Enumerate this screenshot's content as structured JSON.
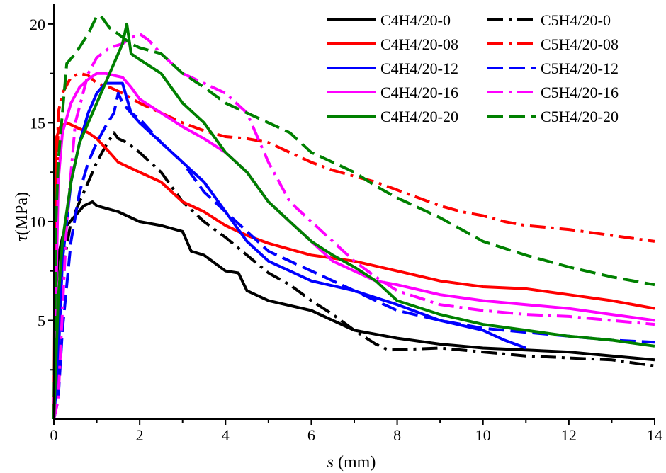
{
  "chart_data": {
    "type": "line",
    "xlabel": {
      "symbol": "s",
      "unit": " (mm)"
    },
    "ylabel": {
      "symbol": "τ",
      "unit": "(MPa)"
    },
    "xlim": [
      0,
      14
    ],
    "ylim": [
      0,
      21
    ],
    "xticks": [
      0,
      2,
      4,
      6,
      8,
      10,
      12,
      14
    ],
    "yticks": [
      5,
      10,
      15,
      20
    ],
    "grid": false,
    "legend_position": "top-right",
    "series": [
      {
        "name": "C4H4/20-0",
        "color": "#000000",
        "dash": "solid",
        "x": [
          0,
          0.05,
          0.1,
          0.2,
          0.3,
          0.5,
          0.7,
          0.9,
          1.0,
          1.5,
          2.0,
          2.5,
          3.0,
          3.2,
          3.5,
          4.0,
          4.3,
          4.5,
          5.0,
          6.0,
          6.5,
          7.0,
          8.0,
          9.0,
          10.0,
          11.0,
          12.0,
          13.0,
          14.0
        ],
        "y": [
          0,
          6.5,
          8.2,
          9.2,
          9.8,
          10.3,
          10.8,
          11.0,
          10.8,
          10.5,
          10.0,
          9.8,
          9.5,
          8.5,
          8.3,
          7.5,
          7.4,
          6.5,
          6.0,
          5.5,
          5.0,
          4.5,
          4.1,
          3.8,
          3.6,
          3.5,
          3.4,
          3.2,
          3.0
        ]
      },
      {
        "name": "C5H4/20-0",
        "color": "#000000",
        "dash": "dashdot",
        "x": [
          0,
          0.1,
          0.2,
          0.4,
          0.6,
          0.8,
          1.0,
          1.2,
          1.4,
          1.5,
          1.7,
          2.0,
          2.5,
          3.0,
          3.5,
          4.0,
          4.5,
          5.0,
          5.5,
          6.0,
          6.5,
          7.0,
          7.5,
          7.8,
          9.0,
          10.0,
          11.0,
          12.0,
          13.0,
          14.0
        ],
        "y": [
          0,
          5.0,
          7.5,
          10.0,
          11.0,
          12.0,
          13.0,
          13.8,
          14.5,
          14.2,
          14.0,
          13.5,
          12.5,
          11.0,
          10.0,
          9.2,
          8.3,
          7.4,
          6.8,
          6.0,
          5.3,
          4.5,
          3.8,
          3.5,
          3.6,
          3.4,
          3.2,
          3.1,
          3.0,
          2.7
        ]
      },
      {
        "name": "C4H4/20-08",
        "color": "#ff0000",
        "dash": "solid",
        "x": [
          0,
          0.05,
          0.15,
          0.3,
          0.5,
          0.8,
          1.0,
          1.3,
          1.5,
          2.0,
          2.5,
          3.0,
          3.5,
          4.0,
          4.5,
          5.0,
          6.0,
          7.0,
          8.0,
          9.0,
          10.0,
          11.0,
          12.0,
          13.0,
          14.0
        ],
        "y": [
          0,
          14.2,
          14.8,
          15.0,
          14.8,
          14.5,
          14.2,
          13.5,
          13.0,
          12.5,
          12.0,
          11.0,
          10.5,
          9.8,
          9.3,
          8.9,
          8.3,
          8.0,
          7.5,
          7.0,
          6.7,
          6.6,
          6.3,
          6.0,
          5.6
        ]
      },
      {
        "name": "C5H4/20-08",
        "color": "#ff0000",
        "dash": "dashdot",
        "x": [
          0,
          0.1,
          0.2,
          0.4,
          0.6,
          0.8,
          1.0,
          1.3,
          1.6,
          2.0,
          2.5,
          3.0,
          3.5,
          4.0,
          4.5,
          5.0,
          5.5,
          6.0,
          6.5,
          7.0,
          7.5,
          8.0,
          8.5,
          9.0,
          9.5,
          10.0,
          10.5,
          11.0,
          12.0,
          13.0,
          14.0
        ],
        "y": [
          0,
          15.5,
          16.5,
          17.3,
          17.5,
          17.4,
          17.0,
          16.8,
          16.5,
          16.0,
          15.5,
          15.0,
          14.6,
          14.3,
          14.2,
          14.0,
          13.5,
          13.0,
          12.6,
          12.3,
          12.0,
          11.6,
          11.2,
          10.8,
          10.5,
          10.3,
          10.0,
          9.8,
          9.6,
          9.3,
          9.0
        ]
      },
      {
        "name": "C4H4/20-12",
        "color": "#0000ff",
        "dash": "solid",
        "x": [
          0,
          0.1,
          0.2,
          0.4,
          0.6,
          0.8,
          1.0,
          1.2,
          1.4,
          1.6,
          1.8,
          2.0,
          2.5,
          3.0,
          3.5,
          4.0,
          4.5,
          5.0,
          5.5,
          6.0,
          7.0,
          8.0,
          9.0,
          10.0,
          10.5,
          11.0
        ],
        "y": [
          0,
          3.0,
          8.0,
          12.0,
          14.0,
          15.5,
          16.5,
          17.0,
          17.0,
          17.0,
          15.5,
          15.0,
          14.0,
          13.0,
          12.0,
          10.5,
          9.0,
          8.0,
          7.5,
          7.0,
          6.5,
          5.8,
          5.0,
          4.5,
          4.0,
          3.6
        ]
      },
      {
        "name": "C5H4/20-12",
        "color": "#0000ff",
        "dash": "dashed",
        "x": [
          0,
          0.1,
          0.2,
          0.4,
          0.6,
          0.8,
          1.0,
          1.2,
          1.4,
          1.5,
          1.6,
          1.8,
          2.0,
          2.5,
          3.0,
          3.5,
          4.0,
          4.5,
          5.0,
          6.0,
          7.0,
          8.0,
          9.0,
          10.0,
          11.0,
          12.0,
          13.0,
          14.0
        ],
        "y": [
          0,
          1.0,
          4.5,
          9.0,
          11.5,
          13.0,
          14.0,
          14.8,
          15.5,
          16.5,
          16.0,
          15.5,
          15.2,
          14.0,
          13.0,
          11.5,
          10.5,
          9.5,
          8.5,
          7.5,
          6.5,
          5.5,
          5.0,
          4.6,
          4.4,
          4.2,
          4.0,
          3.9
        ]
      },
      {
        "name": "C4H4/20-16",
        "color": "#ff00ff",
        "dash": "solid",
        "x": [
          0,
          0.1,
          0.2,
          0.4,
          0.6,
          0.8,
          1.0,
          1.2,
          1.4,
          1.6,
          1.8,
          2.0,
          2.5,
          3.0,
          3.5,
          4.0,
          4.5,
          5.0,
          5.5,
          6.0,
          6.5,
          7.0,
          7.5,
          8.0,
          9.0,
          10.0,
          11.0,
          12.0,
          13.0,
          14.0
        ],
        "y": [
          0,
          12.0,
          14.5,
          16.0,
          16.8,
          17.2,
          17.5,
          17.5,
          17.4,
          17.3,
          16.8,
          16.2,
          15.5,
          14.8,
          14.2,
          13.5,
          12.5,
          11.0,
          10.0,
          9.0,
          8.0,
          7.5,
          7.0,
          6.8,
          6.3,
          6.0,
          5.8,
          5.6,
          5.3,
          5.0
        ]
      },
      {
        "name": "C5H4/20-16",
        "color": "#ff00ff",
        "dash": "dashdot",
        "x": [
          0,
          0.1,
          0.3,
          0.5,
          0.8,
          1.0,
          1.3,
          1.6,
          1.8,
          2.0,
          2.2,
          2.5,
          3.0,
          3.5,
          4.0,
          4.5,
          5.0,
          5.5,
          6.0,
          6.5,
          7.0,
          7.5,
          8.0,
          9.0,
          10.0,
          11.0,
          12.0,
          13.0,
          14.0
        ],
        "y": [
          0,
          1.0,
          10.0,
          15.0,
          17.5,
          18.3,
          18.8,
          19.0,
          19.3,
          19.5,
          19.2,
          18.5,
          17.5,
          17.0,
          16.5,
          15.5,
          13.0,
          11.0,
          10.0,
          9.0,
          8.0,
          7.2,
          6.5,
          5.8,
          5.5,
          5.3,
          5.2,
          5.0,
          4.8
        ]
      },
      {
        "name": "C4H4/20-20",
        "color": "#008000",
        "dash": "solid",
        "x": [
          0,
          0.1,
          0.2,
          0.4,
          0.6,
          0.8,
          1.0,
          1.2,
          1.4,
          1.6,
          1.7,
          1.8,
          2.0,
          2.5,
          3.0,
          3.5,
          4.0,
          4.5,
          5.0,
          5.5,
          6.0,
          6.5,
          7.0,
          7.5,
          8.0,
          9.0,
          10.0,
          11.0,
          12.0,
          13.0,
          14.0
        ],
        "y": [
          0,
          6.0,
          9.0,
          12.0,
          14.0,
          15.0,
          16.0,
          17.0,
          18.0,
          19.0,
          20.0,
          18.5,
          18.2,
          17.5,
          16.0,
          15.0,
          13.5,
          12.5,
          11.0,
          10.0,
          9.0,
          8.3,
          7.7,
          7.0,
          6.0,
          5.3,
          4.8,
          4.5,
          4.2,
          4.0,
          3.7
        ]
      },
      {
        "name": "C5H4/20-20",
        "color": "#008000",
        "dash": "dashed",
        "x": [
          0,
          0.05,
          0.1,
          0.2,
          0.3,
          0.5,
          0.8,
          1.0,
          1.1,
          1.3,
          1.5,
          1.8,
          2.0,
          2.5,
          3.0,
          3.5,
          4.0,
          4.5,
          5.0,
          5.5,
          6.0,
          6.5,
          7.0,
          7.5,
          8.0,
          8.5,
          9.0,
          9.5,
          10.0,
          11.0,
          12.0,
          13.0,
          14.0
        ],
        "y": [
          0,
          10.0,
          13.0,
          15.5,
          18.0,
          18.5,
          19.5,
          20.4,
          20.4,
          19.8,
          19.5,
          19.0,
          18.8,
          18.5,
          17.5,
          16.8,
          16.0,
          15.5,
          15.0,
          14.5,
          13.5,
          13.0,
          12.5,
          11.8,
          11.2,
          10.7,
          10.2,
          9.6,
          9.0,
          8.3,
          7.7,
          7.2,
          6.8
        ]
      }
    ]
  }
}
